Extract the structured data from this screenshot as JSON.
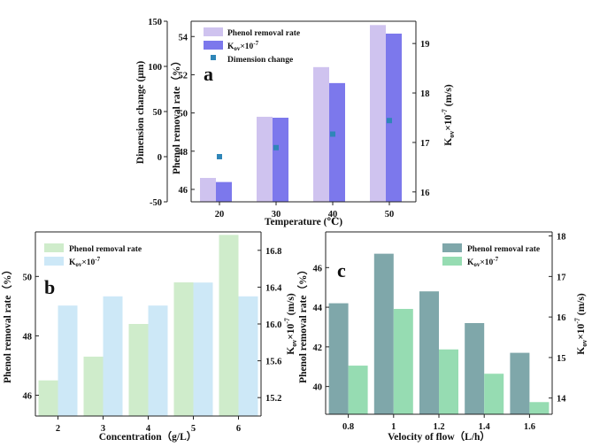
{
  "colors": {
    "a_rate": "#cfc3ef",
    "a_kov": "#7c78ec",
    "a_dim": "#2f86b8",
    "b_rate": "#cfeccb",
    "b_kov": "#cde8f7",
    "c_rate": "#7fa7aa",
    "c_kov": "#96dcb2"
  },
  "chart_data": [
    {
      "panel": "a",
      "type": "bar",
      "title": "",
      "categories": [
        "20",
        "30",
        "40",
        "50"
      ],
      "xlabel": "Temperature (℃)",
      "series": [
        {
          "name": "Phenol removal rate",
          "axis": "left",
          "values": [
            46.6,
            49.8,
            52.4,
            54.6
          ]
        },
        {
          "name": "K_ov×10^-7",
          "axis": "right",
          "values": [
            16.2,
            17.5,
            18.2,
            19.2
          ]
        },
        {
          "name": "Dimension change",
          "axis": "outer-left",
          "type": "scatter",
          "values": [
            0,
            10,
            25,
            40
          ]
        }
      ],
      "y_left": {
        "label": "Phenol removal rate（%）",
        "lim": [
          45.35,
          54.8
        ],
        "ticks": [
          "46",
          "48",
          "50",
          "52",
          "54"
        ]
      },
      "y_right": {
        "label": "K_ov×10^-7 (m/s)",
        "lim": [
          15.8,
          19.45
        ],
        "ticks": [
          "16",
          "17",
          "18",
          "19"
        ]
      },
      "y_outer": {
        "label": "Dimension change (μm)",
        "lim": [
          -50,
          150
        ],
        "ticks": [
          "-50",
          "0",
          "50",
          "100",
          "150"
        ]
      },
      "legend": [
        "Phenol removal rate",
        "K_ov×10^-7",
        "Dimension change"
      ]
    },
    {
      "panel": "b",
      "type": "bar",
      "title": "",
      "categories": [
        "2",
        "3",
        "4",
        "5",
        "6"
      ],
      "xlabel": "Concentration（g/L）",
      "series": [
        {
          "name": "Phenol removal rate",
          "axis": "left",
          "values": [
            46.5,
            47.3,
            48.4,
            49.8,
            51.4
          ]
        },
        {
          "name": "K_ov×10^-7",
          "axis": "right",
          "values": [
            16.2,
            16.3,
            16.2,
            16.45,
            16.3
          ]
        }
      ],
      "y_left": {
        "label": "Phenol removal rate（%）",
        "lim": [
          45.3,
          51.5
        ],
        "ticks": [
          "46",
          "48",
          "50"
        ]
      },
      "y_right": {
        "label": "K_ov×10^-7 (m/s)",
        "lim": [
          15.0,
          17.0
        ],
        "ticks": [
          "15.2",
          "15.6",
          "16.0",
          "16.4",
          "16.8"
        ]
      },
      "legend": [
        "Phenol removal rate",
        "K_ov×10^-7"
      ]
    },
    {
      "panel": "c",
      "type": "bar",
      "title": "",
      "categories": [
        "0.8",
        "1",
        "1.2",
        "1.4",
        "1.6"
      ],
      "xlabel": "Velocity of flow（L/h）",
      "series": [
        {
          "name": "Phenol removal rate",
          "axis": "left",
          "values": [
            44.2,
            46.7,
            44.8,
            43.2,
            41.7
          ]
        },
        {
          "name": "K_ov×10^-7",
          "axis": "right",
          "values": [
            14.8,
            16.2,
            15.2,
            14.6,
            13.9
          ]
        }
      ],
      "y_left": {
        "label": "Phenol removal rate（%）",
        "lim": [
          38.6,
          47.8
        ],
        "ticks": [
          "40",
          "42",
          "44",
          "46"
        ]
      },
      "y_right": {
        "label": "K_ov×10^-7 (m/s)",
        "lim": [
          13.6,
          18.1
        ],
        "ticks": [
          "14",
          "15",
          "16",
          "17",
          "18"
        ]
      },
      "legend": [
        "Phenol removal rate",
        "K_ov×10^-7"
      ]
    }
  ]
}
